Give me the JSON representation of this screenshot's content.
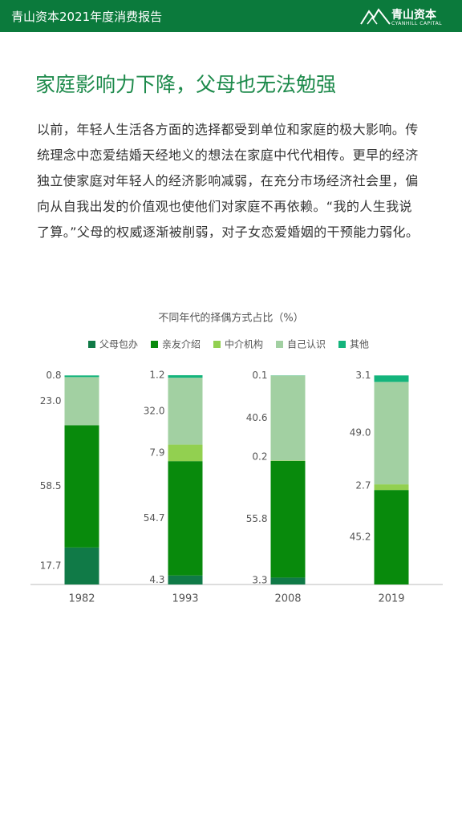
{
  "header": {
    "title": "青山资本2021年度消费报告",
    "logo": "青山资本",
    "logo_sub": "CYANHILL CAPITAL"
  },
  "heading": "家庭影响力下降，父母也无法勉强",
  "paragraph": [
    "以前，年轻人生活各方面的选择都受到单位和家庭的极大影响。传",
    "统理念中恋爱结婚天经地义的想法在家庭中代代相传。更早的经济",
    "独立使家庭对年轻人的经济影响减弱，在充分市场经济社会里，偏",
    "向从自我出发的价值观也使他们对家庭不再依赖。“我的人生我说",
    "了算。”父母的权威逐渐被削弱，对子女恋爱婚姻的干预能力弱化。"
  ],
  "chart_data": {
    "type": "stacked-bar",
    "title": "不同年代的择偶方式占比（%）",
    "categories": [
      "1982",
      "1993",
      "2008",
      "2019"
    ],
    "series": [
      {
        "name": "父母包办",
        "color": "#107a47",
        "values": [
          17.7,
          4.3,
          3.3,
          0
        ],
        "value_labels": [
          "17.7",
          "4.3",
          "3.3",
          null
        ]
      },
      {
        "name": "亲友介绍",
        "color": "#088a0c",
        "values": [
          58.5,
          54.7,
          55.8,
          45.2
        ],
        "value_labels": [
          "58.5",
          "54.7",
          "55.8",
          "45.2"
        ]
      },
      {
        "name": "中介机构",
        "color": "#92d050",
        "values": [
          0,
          7.9,
          0.2,
          2.7
        ],
        "value_labels": [
          null,
          "7.9",
          "0.2",
          "2.7"
        ]
      },
      {
        "name": "自己认识",
        "color": "#a2d0a2",
        "values": [
          23.0,
          32.0,
          40.6,
          49.0
        ],
        "value_labels": [
          "23.0",
          "32.0",
          "40.6",
          "49.0"
        ]
      },
      {
        "name": "其他",
        "color": "#14b47c",
        "values": [
          0.8,
          1.2,
          0.1,
          3.1
        ],
        "value_labels": [
          "0.8",
          "1.2",
          "0.1",
          "3.1"
        ]
      }
    ]
  }
}
